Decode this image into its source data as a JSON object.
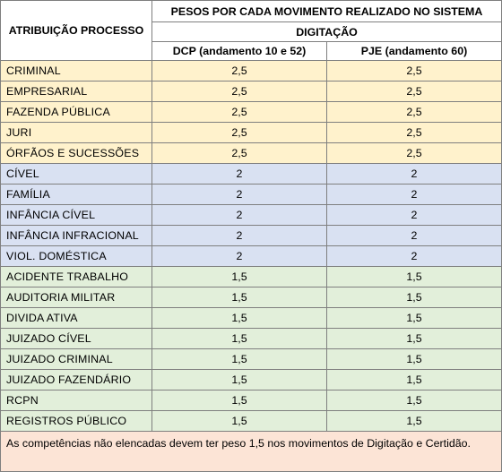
{
  "header": {
    "stub": "ATRIBUIÇÃO PROCESSO",
    "top": "PESOS POR CADA MOVIMENTO REALIZADO NO SISTEMA",
    "middle": "DIGITAÇÃO",
    "col_dcp": "DCP (andamento 10 e 52)",
    "col_pje": "PJE (andamento 60)"
  },
  "colors": {
    "yellow": "#fff2cc",
    "blue": "#d9e1f2",
    "green": "#e2efda",
    "note": "#fce4d6"
  },
  "rows": [
    {
      "label": "CRIMINAL",
      "dcp": "2,5",
      "pje": "2,5",
      "group": "yellow"
    },
    {
      "label": "EMPRESARIAL",
      "dcp": "2,5",
      "pje": "2,5",
      "group": "yellow"
    },
    {
      "label": "FAZENDA PÚBLICA",
      "dcp": "2,5",
      "pje": "2,5",
      "group": "yellow"
    },
    {
      "label": "JURI",
      "dcp": "2,5",
      "pje": "2,5",
      "group": "yellow"
    },
    {
      "label": "ÓRFÃOS E SUCESSÕES",
      "dcp": "2,5",
      "pje": "2,5",
      "group": "yellow"
    },
    {
      "label": "CÍVEL",
      "dcp": "2",
      "pje": "2",
      "group": "blue"
    },
    {
      "label": "FAMÍLIA",
      "dcp": "2",
      "pje": "2",
      "group": "blue"
    },
    {
      "label": "INFÂNCIA CÍVEL",
      "dcp": "2",
      "pje": "2",
      "group": "blue"
    },
    {
      "label": "INFÂNCIA INFRACIONAL",
      "dcp": "2",
      "pje": "2",
      "group": "blue"
    },
    {
      "label": "VIOL. DOMÉSTICA",
      "dcp": "2",
      "pje": "2",
      "group": "blue"
    },
    {
      "label": "ACIDENTE TRABALHO",
      "dcp": "1,5",
      "pje": "1,5",
      "group": "green"
    },
    {
      "label": "AUDITORIA MILITAR",
      "dcp": "1,5",
      "pje": "1,5",
      "group": "green"
    },
    {
      "label": "DIVIDA ATIVA",
      "dcp": "1,5",
      "pje": "1,5",
      "group": "green"
    },
    {
      "label": "JUIZADO CÍVEL",
      "dcp": "1,5",
      "pje": "1,5",
      "group": "green"
    },
    {
      "label": "JUIZADO CRIMINAL",
      "dcp": "1,5",
      "pje": "1,5",
      "group": "green"
    },
    {
      "label": "JUIZADO FAZENDÁRIO",
      "dcp": "1,5",
      "pje": "1,5",
      "group": "green"
    },
    {
      "label": "RCPN",
      "dcp": "1,5",
      "pje": "1,5",
      "group": "green"
    },
    {
      "label": "REGISTROS PÚBLICO",
      "dcp": "1,5",
      "pje": "1,5",
      "group": "green"
    }
  ],
  "note": "As competências não elencadas devem ter peso 1,5 nos movimentos de Digitação e Certidão."
}
